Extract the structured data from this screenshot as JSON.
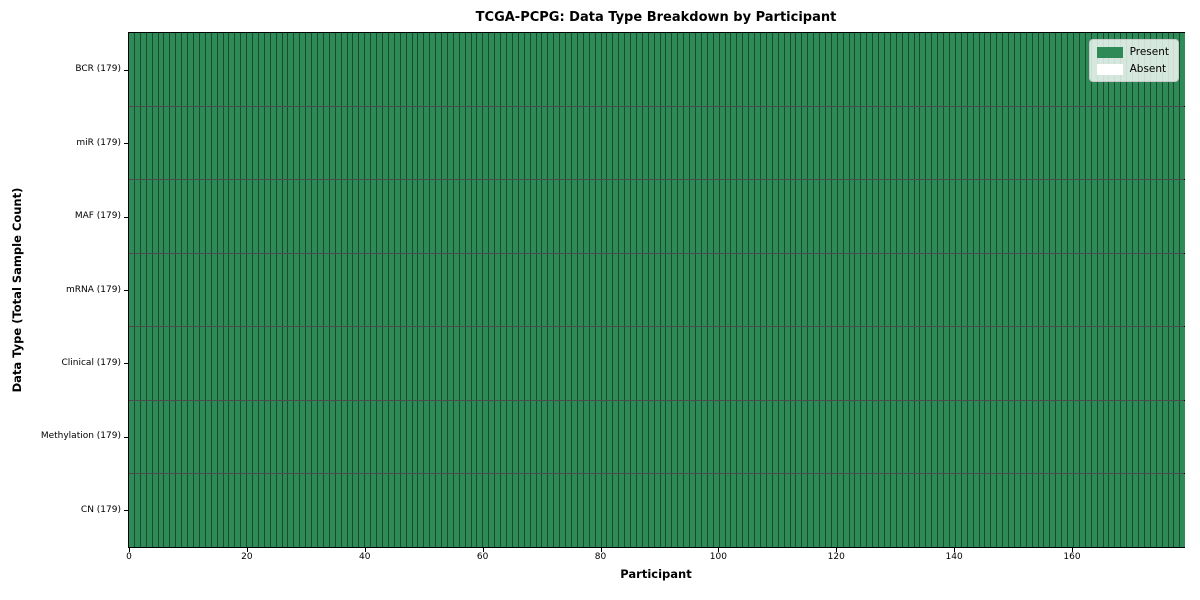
{
  "chart_data": {
    "type": "heatmap",
    "title": "TCGA-PCPG: Data Type Breakdown by Participant",
    "xlabel": "Participant",
    "ylabel": "Data Type (Total Sample Count)",
    "n_participants": 179,
    "x_range": [
      0,
      179
    ],
    "x_ticks": [
      0,
      20,
      40,
      60,
      80,
      100,
      120,
      140,
      160
    ],
    "rows": [
      {
        "label": "BCR (179)",
        "total": 179,
        "present": 179,
        "absent": 0
      },
      {
        "label": "miR (179)",
        "total": 179,
        "present": 179,
        "absent": 0
      },
      {
        "label": "MAF (179)",
        "total": 179,
        "present": 179,
        "absent": 0
      },
      {
        "label": "mRNA (179)",
        "total": 179,
        "present": 179,
        "absent": 0
      },
      {
        "label": "Clinical (179)",
        "total": 179,
        "present": 179,
        "absent": 0
      },
      {
        "label": "Methylation (179)",
        "total": 179,
        "present": 179,
        "absent": 0
      },
      {
        "label": "CN (179)",
        "total": 179,
        "present": 179,
        "absent": 0
      }
    ],
    "legend": {
      "position": "upper right",
      "items": [
        {
          "label": "Present",
          "color": "#2e8b57"
        },
        {
          "label": "Absent",
          "color": "#ffffff"
        }
      ]
    },
    "colors": {
      "present": "#2e8b57",
      "absent": "#ffffff",
      "cell_edge": "rgba(0,0,0,0.45)",
      "row_edge": "rgba(0,0,0,0.7)",
      "spine": "#000000"
    },
    "grid": "per-cell edges",
    "legend_on": true
  }
}
